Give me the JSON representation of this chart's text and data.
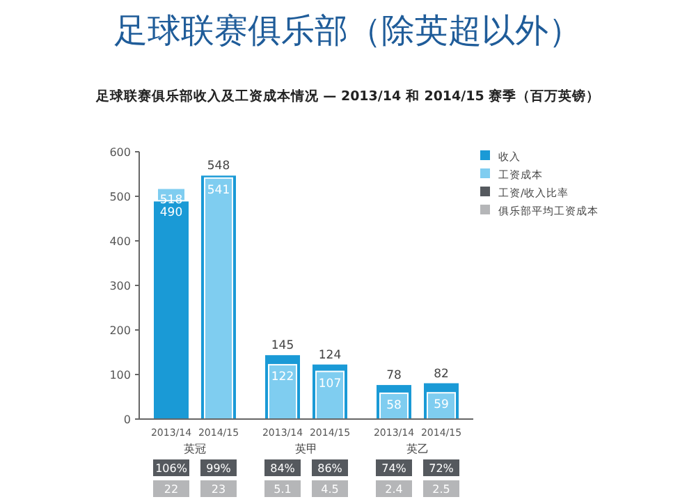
{
  "chart_data": {
    "type": "bar",
    "title": "足球联赛俱乐部（除英超以外）",
    "subtitle": "足球联赛俱乐部收入及工资成本情况 — 2013/14 和 2014/15 赛季（百万英镑）",
    "categories": [
      "2013/14",
      "2014/15",
      "2013/14",
      "2014/15",
      "2013/14",
      "2014/15"
    ],
    "series": [
      {
        "name": "收入",
        "color": "#1a9ad6",
        "values": [
          490,
          548,
          145,
          124,
          78,
          82
        ]
      },
      {
        "name": "工资成本",
        "color": "#7fcdf0",
        "values": [
          518,
          541,
          122,
          107,
          58,
          59
        ]
      }
    ],
    "annotations": [
      "英冠",
      "英甲",
      "英乙",
      "工资/收入比率",
      "俱乐部平均工资成本",
      "106%",
      "99%",
      "84%",
      "86%",
      "74%",
      "72%",
      "22",
      "23",
      "5.1",
      "4.5",
      "2.4",
      "2.5"
    ],
    "ylim": [
      0,
      600
    ],
    "yticks": [
      0,
      100,
      200,
      300,
      400,
      500,
      600
    ],
    "data_labels": true,
    "legend": "top right"
  }
}
